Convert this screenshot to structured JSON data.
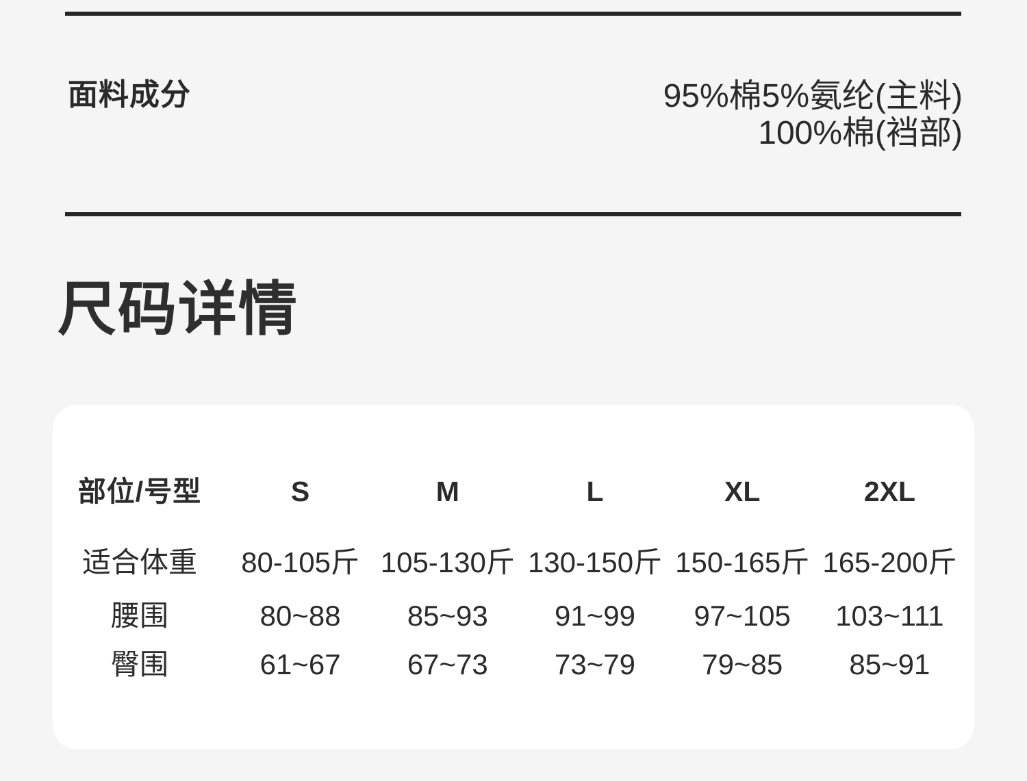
{
  "page": {
    "background_color": "#f5f5f6",
    "card_color": "#ffffff",
    "text_color": "#2a2a2a",
    "divider_color": "#262626"
  },
  "fabric_section": {
    "label": "面料成分",
    "value_line1": "95%棉5%氨纶(主料)",
    "value_line2": "100%棉(裆部)"
  },
  "size_section": {
    "title": "尺码详情",
    "table": {
      "header": [
        "部位/号型",
        "S",
        "M",
        "L",
        "XL",
        "2XL"
      ],
      "rows": [
        {
          "label": "适合体重",
          "values": [
            "80-105斤",
            "105-130斤",
            "130-150斤",
            "150-165斤",
            "165-200斤"
          ]
        },
        {
          "label": "腰围",
          "values": [
            "80~88",
            "85~93",
            "91~99",
            "97~105",
            "103~111"
          ]
        },
        {
          "label": "臀围",
          "values": [
            "61~67",
            "67~73",
            "73~79",
            "79~85",
            "85~91"
          ]
        }
      ]
    }
  }
}
